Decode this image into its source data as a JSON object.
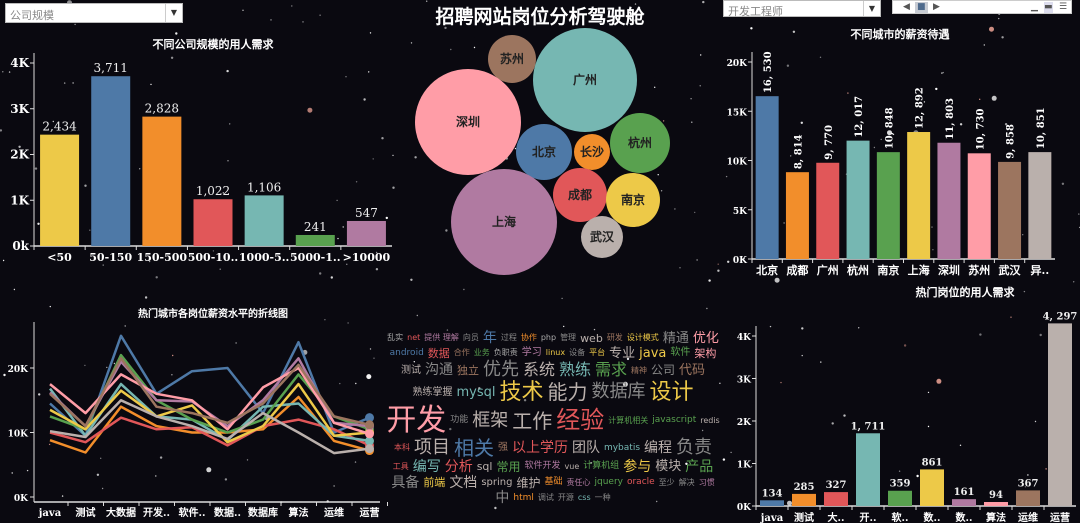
{
  "page_title": "招聘网站岗位分析驾驶舱",
  "filters": {
    "company_size_select": "公司规模",
    "job_select": "开发工程师"
  },
  "pager": {
    "prev_icon": "triangle-left-icon",
    "stop_icon": "square-icon",
    "next_icon": "triangle-right-icon",
    "size_icons": [
      "small-view-icon",
      "medium-view-icon",
      "large-view-icon"
    ]
  },
  "palette": [
    "#4e79a7",
    "#f28e2b",
    "#e15759",
    "#76b7b2",
    "#59a14f",
    "#edc948",
    "#b07aa1",
    "#ff9da7",
    "#9c755f",
    "#bab0ac"
  ],
  "chart_data": [
    {
      "id": "company_size",
      "type": "bar",
      "title": "不同公司规模的用人需求",
      "categories": [
        "<50",
        "50-150",
        "150-500",
        "500-10..",
        "1000-5..",
        "5000-1..",
        ">10000"
      ],
      "values": [
        2434,
        3711,
        2828,
        1022,
        1106,
        241,
        547
      ],
      "value_labels": [
        "2,434",
        "3,711",
        "2,828",
        "1,022",
        "1,106",
        "241",
        "547"
      ],
      "colors": [
        "#edc948",
        "#4e79a7",
        "#f28e2b",
        "#e15759",
        "#76b7b2",
        "#59a14f",
        "#b07aa1"
      ],
      "yticks": [
        "0k",
        "1K",
        "2K",
        "3K",
        "4K"
      ],
      "ylim": [
        0,
        4000
      ]
    },
    {
      "id": "city_bubbles",
      "type": "bubble",
      "cities": [
        {
          "name": "苏州",
          "color": "#9c755f"
        },
        {
          "name": "广州",
          "color": "#76b7b2"
        },
        {
          "name": "深圳",
          "color": "#ff9da7"
        },
        {
          "name": "北京",
          "color": "#4e79a7"
        },
        {
          "name": "长沙",
          "color": "#f28e2b"
        },
        {
          "name": "杭州",
          "color": "#59a14f"
        },
        {
          "name": "成都",
          "color": "#e15759"
        },
        {
          "name": "南京",
          "color": "#edc948"
        },
        {
          "name": "上海",
          "color": "#b07aa1"
        },
        {
          "name": "武汉",
          "color": "#bab0ac"
        }
      ]
    },
    {
      "id": "city_salary",
      "type": "bar",
      "title": "不同城市的薪资待遇",
      "categories": [
        "北京",
        "成都",
        "广州",
        "杭州",
        "南京",
        "上海",
        "深圳",
        "苏州",
        "武汉",
        "异.."
      ],
      "values": [
        16530,
        8814,
        9770,
        12017,
        10848,
        12892,
        11803,
        10730,
        9858,
        10851
      ],
      "value_labels": [
        "16, 530",
        "8, 814",
        "9, 770",
        "12, 017",
        "10, 848",
        "12, 892",
        "11, 803",
        "10, 730",
        "9, 858",
        "10, 851"
      ],
      "colors": [
        "#4e79a7",
        "#f28e2b",
        "#e15759",
        "#76b7b2",
        "#59a14f",
        "#edc948",
        "#b07aa1",
        "#ff9da7",
        "#9c755f",
        "#bab0ac"
      ],
      "yticks": [
        "0K",
        "5K",
        "10K",
        "15K",
        "20K"
      ],
      "ylim": [
        0,
        20000
      ]
    },
    {
      "id": "salary_lines",
      "type": "line",
      "title": "热门城市各岗位薪资水平的折线图",
      "categories": [
        "java",
        "测试",
        "大数据",
        "开发..",
        "软件..",
        "数据..",
        "数据库",
        "算法",
        "运维",
        "运营"
      ],
      "yticks": [
        "0K",
        "10K",
        "20K"
      ],
      "ylim": [
        0,
        25000
      ],
      "series": [
        {
          "color": "#4e79a7",
          "values": [
            14500,
            9500,
            25000,
            16000,
            19500,
            20000,
            13000,
            24000,
            10000,
            12300
          ]
        },
        {
          "color": "#f28e2b",
          "values": [
            8800,
            6900,
            14000,
            11000,
            10000,
            10000,
            10500,
            15500,
            8700,
            7200
          ]
        },
        {
          "color": "#e15759",
          "values": [
            10000,
            8500,
            12300,
            10500,
            10800,
            8000,
            11000,
            12000,
            10500,
            8000
          ]
        },
        {
          "color": "#76b7b2",
          "values": [
            16800,
            9500,
            17500,
            12500,
            12000,
            8800,
            14000,
            14500,
            9500,
            8700
          ]
        },
        {
          "color": "#59a14f",
          "values": [
            12500,
            10500,
            22000,
            15000,
            12000,
            10000,
            12000,
            19000,
            12500,
            10500
          ]
        },
        {
          "color": "#edc948",
          "values": [
            13500,
            10500,
            16500,
            12500,
            14200,
            8500,
            11000,
            17500,
            9500,
            10000
          ]
        },
        {
          "color": "#b07aa1",
          "values": [
            16200,
            11000,
            21000,
            15000,
            14800,
            11000,
            15000,
            21500,
            11500,
            11000
          ]
        },
        {
          "color": "#ff9da7",
          "values": [
            17500,
            13000,
            19000,
            16000,
            15000,
            10500,
            17000,
            20000,
            11500,
            9800
          ]
        },
        {
          "color": "#9c755f",
          "values": [
            16000,
            11000,
            21500,
            14000,
            13000,
            11500,
            14500,
            20500,
            12500,
            11200
          ]
        },
        {
          "color": "#bab0ac",
          "values": [
            10200,
            9300,
            15000,
            12500,
            11000,
            9000,
            13000,
            10000,
            6800,
            7500
          ]
        }
      ]
    },
    {
      "id": "job_demand",
      "type": "bar",
      "title": "热门岗位的用人需求",
      "categories": [
        "java",
        "测试",
        "大..",
        "开..",
        "软..",
        "数..",
        "数..",
        "算法",
        "运维",
        "运营"
      ],
      "values": [
        134,
        285,
        327,
        1711,
        359,
        861,
        161,
        94,
        367,
        4297
      ],
      "value_labels": [
        "134",
        "285",
        "327",
        "1, 711",
        "359",
        "861",
        "161",
        "94",
        "367",
        "4, 297"
      ],
      "colors": [
        "#4e79a7",
        "#f28e2b",
        "#e15759",
        "#76b7b2",
        "#59a14f",
        "#edc948",
        "#b07aa1",
        "#ff9da7",
        "#9c755f",
        "#bab0ac"
      ],
      "yticks": [
        "0K",
        "1K",
        "2K",
        "3K",
        "4K"
      ],
      "ylim": [
        0,
        4000
      ]
    }
  ],
  "wordcloud": {
    "words": [
      {
        "text": "乱实",
        "color": "#aaaaaa"
      },
      {
        "text": "net",
        "color": "#e15759"
      },
      {
        "text": "提供 理解",
        "color": "#b07aa1"
      },
      {
        "text": "向员",
        "color": "#888888"
      },
      {
        "text": "年",
        "color": "#4e79a7"
      },
      {
        "text": "过程",
        "color": "#888888"
      },
      {
        "text": "协作",
        "color": "#f28e2b"
      },
      {
        "text": "php",
        "color": "#aaaaaa"
      },
      {
        "text": "管理",
        "color": "#888888"
      },
      {
        "text": "web",
        "color": "#bab0ac"
      },
      {
        "text": "研发",
        "color": "#9c755f"
      },
      {
        "text": "设计模式",
        "color": "#edc948"
      },
      {
        "text": "精通",
        "color": "#888888"
      },
      {
        "text": "优化",
        "color": "#ff9da7"
      },
      {
        "text": "android",
        "color": "#4e79a7"
      },
      {
        "text": "数据",
        "color": "#e15759"
      },
      {
        "text": "合作",
        "color": "#9c755f"
      },
      {
        "text": "业务",
        "color": "#59a14f"
      },
      {
        "text": "负职责",
        "color": "#aaaaaa"
      },
      {
        "text": "学习",
        "color": "#b07aa1"
      },
      {
        "text": "linux",
        "color": "#edc948"
      },
      {
        "text": "设备",
        "color": "#888888"
      },
      {
        "text": "平台",
        "color": "#edc948"
      },
      {
        "text": "专业",
        "color": "#bab0ac"
      },
      {
        "text": "java",
        "color": "#edc948"
      },
      {
        "text": "软件",
        "color": "#59a14f"
      },
      {
        "text": "架构",
        "color": "#ff9da7"
      },
      {
        "text": "测试",
        "color": "#bab0ac"
      },
      {
        "text": "沟通",
        "color": "#888888"
      },
      {
        "text": "独立",
        "color": "#9c755f"
      },
      {
        "text": "优先",
        "color": "#888888"
      },
      {
        "text": "系统",
        "color": "#bab0ac"
      },
      {
        "text": "熟练",
        "color": "#76b7b2"
      },
      {
        "text": "需求",
        "color": "#59a14f"
      },
      {
        "text": "精神",
        "color": "#9c755f"
      },
      {
        "text": "公司",
        "color": "#888888"
      },
      {
        "text": "代码",
        "color": "#9c755f"
      },
      {
        "text": "熟练掌握",
        "color": "#bab0ac"
      },
      {
        "text": "mysql",
        "color": "#76b7b2"
      },
      {
        "text": "技术",
        "color": "#edc948"
      },
      {
        "text": "能力",
        "color": "#bab0ac"
      },
      {
        "text": "数据库",
        "color": "#888888"
      },
      {
        "text": "设计",
        "color": "#edc948"
      },
      {
        "text": "开发",
        "color": "#ff9da7"
      },
      {
        "text": "功能",
        "color": "#888888"
      },
      {
        "text": "框架",
        "color": "#bab0ac"
      },
      {
        "text": "工作",
        "color": "#bab0ac"
      },
      {
        "text": "经验",
        "color": "#e15759"
      },
      {
        "text": "计算机相关",
        "color": "#59a14f"
      },
      {
        "text": "javascript",
        "color": "#59a14f"
      },
      {
        "text": "redis",
        "color": "#bab0ac"
      },
      {
        "text": "本科",
        "color": "#e15759"
      },
      {
        "text": "项目",
        "color": "#bab0ac"
      },
      {
        "text": "相关",
        "color": "#4e79a7"
      },
      {
        "text": "强",
        "color": "#9c755f"
      },
      {
        "text": "以上学历",
        "color": "#e15759"
      },
      {
        "text": "团队",
        "color": "#bab0ac"
      },
      {
        "text": "mybatis",
        "color": "#76b7b2"
      },
      {
        "text": "编程",
        "color": "#bab0ac"
      },
      {
        "text": "负责",
        "color": "#888888"
      },
      {
        "text": "工具",
        "color": "#e15759"
      },
      {
        "text": "编写",
        "color": "#76b7b2"
      },
      {
        "text": "分析",
        "color": "#e15759"
      },
      {
        "text": "sql",
        "color": "#bab0ac"
      },
      {
        "text": "常用",
        "color": "#59a14f"
      },
      {
        "text": "软件开发",
        "color": "#b07aa1"
      },
      {
        "text": "vue",
        "color": "#bab0ac"
      },
      {
        "text": "计算机组",
        "color": "#59a14f"
      },
      {
        "text": "参与",
        "color": "#edc948"
      },
      {
        "text": "模块",
        "color": "#bab0ac"
      },
      {
        "text": "产品",
        "color": "#59a14f"
      },
      {
        "text": "具备",
        "color": "#888888"
      },
      {
        "text": "前端",
        "color": "#edc948"
      },
      {
        "text": "文档",
        "color": "#bab0ac"
      },
      {
        "text": "spring",
        "color": "#bab0ac"
      },
      {
        "text": "维护",
        "color": "#bab0ac"
      },
      {
        "text": "基础",
        "color": "#f28e2b"
      },
      {
        "text": "责任心",
        "color": "#b07aa1"
      },
      {
        "text": "jquery",
        "color": "#59a14f"
      },
      {
        "text": "oracle",
        "color": "#e15759"
      },
      {
        "text": "至少",
        "color": "#888888"
      },
      {
        "text": "解决",
        "color": "#888888"
      },
      {
        "text": "习惯",
        "color": "#b07aa1"
      },
      {
        "text": "中",
        "color": "#888888"
      },
      {
        "text": "html",
        "color": "#f28e2b"
      },
      {
        "text": "调试",
        "color": "#888888"
      },
      {
        "text": "开源",
        "color": "#888888"
      },
      {
        "text": "css",
        "color": "#76b7b2"
      },
      {
        "text": "一种",
        "color": "#888888"
      }
    ]
  }
}
